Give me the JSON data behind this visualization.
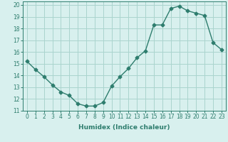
{
  "x": [
    0,
    1,
    2,
    3,
    4,
    5,
    6,
    7,
    8,
    9,
    10,
    11,
    12,
    13,
    14,
    15,
    16,
    17,
    18,
    19,
    20,
    21,
    22,
    23
  ],
  "y": [
    15.2,
    14.5,
    13.9,
    13.2,
    12.6,
    12.3,
    11.6,
    11.4,
    11.4,
    11.7,
    13.1,
    13.9,
    14.6,
    15.5,
    16.1,
    18.3,
    18.3,
    19.7,
    19.9,
    19.5,
    19.3,
    19.1,
    16.8,
    16.2
  ],
  "line_color": "#2e7d6e",
  "marker": "D",
  "markersize": 2.5,
  "linewidth": 1.0,
  "bg_color": "#d8f0ee",
  "grid_color": "#aad4ce",
  "xlabel": "Humidex (Indice chaleur)",
  "ylabel": "",
  "xlim": [
    -0.5,
    23.5
  ],
  "ylim": [
    11,
    20.3
  ],
  "xtick_labels": [
    "0",
    "1",
    "2",
    "3",
    "4",
    "5",
    "6",
    "7",
    "8",
    "9",
    "10",
    "11",
    "12",
    "13",
    "14",
    "15",
    "16",
    "17",
    "18",
    "19",
    "20",
    "21",
    "22",
    "23"
  ],
  "ytick_values": [
    11,
    12,
    13,
    14,
    15,
    16,
    17,
    18,
    19,
    20
  ],
  "label_fontsize": 6.5,
  "tick_fontsize": 5.5
}
